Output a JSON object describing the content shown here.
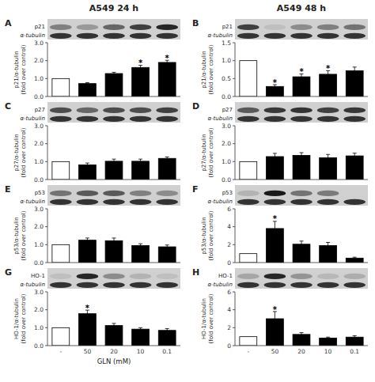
{
  "chart_data": [
    {
      "type": "bar",
      "title": "A549 24 h",
      "annotations": [
        "A"
      ],
      "blot": {
        "labels": [
          "p21",
          "α-tubulin"
        ],
        "intensities": [
          [
            0.5,
            0.4,
            0.6,
            0.75,
            0.85
          ],
          [
            0.8,
            0.8,
            0.8,
            0.8,
            0.8
          ]
        ]
      },
      "categories": [
        "-",
        "50",
        "20",
        "10",
        "0.1"
      ],
      "tick_labels": "y",
      "ylabel": "p21/α-tubulin\n(fold over control)",
      "ylim": [
        0,
        3.0
      ],
      "yticks": [
        {
          "value": 0,
          "label": "0.0"
        },
        {
          "value": 1.0,
          "label": "1.0"
        },
        {
          "value": 2.0,
          "label": "2.0"
        },
        {
          "value": 3.0,
          "label": "3.0"
        }
      ],
      "values": [
        1.0,
        0.72,
        1.28,
        1.62,
        1.9
      ],
      "errors": [
        0.0,
        0.05,
        0.07,
        0.12,
        0.12
      ],
      "significance": [
        null,
        null,
        null,
        "*",
        "*"
      ],
      "colors": [
        "white",
        "black",
        "black",
        "black",
        "black"
      ]
    },
    {
      "type": "bar",
      "annotations": [
        "C"
      ],
      "blot": {
        "labels": [
          "p27",
          "α-tubulin"
        ],
        "intensities": [
          [
            0.7,
            0.6,
            0.7,
            0.7,
            0.75
          ],
          [
            0.8,
            0.8,
            0.8,
            0.8,
            0.8
          ]
        ]
      },
      "categories": [
        "-",
        "50",
        "20",
        "10",
        "0.1"
      ],
      "tick_labels": "y",
      "ylabel": "p27/α-tubulin\n(fold over control)",
      "ylim": [
        0,
        3.0
      ],
      "yticks": [
        {
          "value": 0,
          "label": "0.0"
        },
        {
          "value": 1.0,
          "label": "1.0"
        },
        {
          "value": 2.0,
          "label": "2.0"
        },
        {
          "value": 3.0,
          "label": "3.0"
        }
      ],
      "values": [
        1.0,
        0.82,
        1.02,
        1.02,
        1.18
      ],
      "errors": [
        0.0,
        0.1,
        0.12,
        0.12,
        0.08
      ],
      "significance": [
        null,
        null,
        null,
        null,
        null
      ],
      "colors": [
        "white",
        "black",
        "black",
        "black",
        "black"
      ]
    },
    {
      "type": "bar",
      "annotations": [
        "E"
      ],
      "blot": {
        "labels": [
          "p53",
          "α-tubulin"
        ],
        "intensities": [
          [
            0.55,
            0.65,
            0.65,
            0.5,
            0.45
          ],
          [
            0.8,
            0.8,
            0.8,
            0.8,
            0.8
          ]
        ]
      },
      "categories": [
        "-",
        "50",
        "20",
        "10",
        "0.1"
      ],
      "tick_labels": "y",
      "ylabel": "p53/α-tubulin\n(fold over control)",
      "ylim": [
        0,
        3.0
      ],
      "yticks": [
        {
          "value": 0,
          "label": "0.0"
        },
        {
          "value": 1.0,
          "label": "1.0"
        },
        {
          "value": 2.0,
          "label": "2.0"
        },
        {
          "value": 3.0,
          "label": "3.0"
        }
      ],
      "values": [
        1.0,
        1.25,
        1.22,
        0.95,
        0.88
      ],
      "errors": [
        0.0,
        0.12,
        0.15,
        0.1,
        0.1
      ],
      "significance": [
        null,
        null,
        null,
        null,
        null
      ],
      "colors": [
        "white",
        "black",
        "black",
        "black",
        "black"
      ]
    },
    {
      "type": "bar",
      "annotations": [
        "G"
      ],
      "blot": {
        "labels": [
          "HO-1",
          "α-tubulin"
        ],
        "intensities": [
          [
            0.25,
            0.85,
            0.45,
            0.3,
            0.25
          ],
          [
            0.8,
            0.8,
            0.8,
            0.8,
            0.8
          ]
        ]
      },
      "categories": [
        "-",
        "50",
        "20",
        "10",
        "0.1"
      ],
      "xlabel": "GLN (mM)",
      "ylabel": "HO-1/α-tubulin\n(fold over control)",
      "ylim": [
        0,
        3.0
      ],
      "yticks": [
        {
          "value": 0,
          "label": "0.0"
        },
        {
          "value": 1.0,
          "label": "1.0"
        },
        {
          "value": 2.0,
          "label": "2.0"
        },
        {
          "value": 3.0,
          "label": "3.0"
        }
      ],
      "values": [
        1.0,
        1.78,
        1.12,
        0.92,
        0.85
      ],
      "errors": [
        0.0,
        0.2,
        0.12,
        0.08,
        0.1
      ],
      "significance": [
        null,
        "*",
        null,
        null,
        null
      ],
      "colors": [
        "white",
        "black",
        "black",
        "black",
        "black"
      ]
    },
    {
      "type": "bar",
      "title": "A549 48 h",
      "annotations": [
        "B"
      ],
      "blot": {
        "labels": [
          "p21",
          "α-tubulin"
        ],
        "intensities": [
          [
            0.75,
            0.25,
            0.45,
            0.5,
            0.55
          ],
          [
            0.8,
            0.8,
            0.8,
            0.8,
            0.8
          ]
        ]
      },
      "categories": [
        "-",
        "50",
        "20",
        "10",
        "0.1"
      ],
      "tick_labels": "y",
      "ylabel": "p21/α-tubulin\n(fold over control)",
      "ylim": [
        0,
        1.5
      ],
      "yticks": [
        {
          "value": 0,
          "label": "0.0"
        },
        0.5,
        {
          "value": 1.0,
          "label": "1.0"
        },
        1.5
      ],
      "values": [
        1.0,
        0.28,
        0.55,
        0.62,
        0.72
      ],
      "errors": [
        0.0,
        0.05,
        0.08,
        0.1,
        0.1
      ],
      "significance": [
        null,
        "*",
        "*",
        "*",
        null
      ],
      "colors": [
        "white",
        "black",
        "black",
        "black",
        "black"
      ]
    },
    {
      "type": "bar",
      "annotations": [
        "D"
      ],
      "blot": {
        "labels": [
          "p27",
          "α-tubulin"
        ],
        "intensities": [
          [
            0.65,
            0.78,
            0.8,
            0.75,
            0.78
          ],
          [
            0.8,
            0.8,
            0.8,
            0.8,
            0.8
          ]
        ]
      },
      "categories": [
        "-",
        "50",
        "20",
        "10",
        "0.1"
      ],
      "tick_labels": "y",
      "ylabel": "p27/α-tubulin\n(fold over control)",
      "ylim": [
        0,
        3.0
      ],
      "yticks": [
        {
          "value": 0,
          "label": "0.0"
        },
        {
          "value": 1.0,
          "label": "1.0"
        },
        {
          "value": 2.0,
          "label": "2.0"
        },
        {
          "value": 3.0,
          "label": "3.0"
        }
      ],
      "values": [
        1.0,
        1.28,
        1.35,
        1.22,
        1.32
      ],
      "errors": [
        0.0,
        0.18,
        0.15,
        0.18,
        0.15
      ],
      "significance": [
        null,
        null,
        null,
        null,
        null
      ],
      "colors": [
        "white",
        "black",
        "black",
        "black",
        "black"
      ]
    },
    {
      "type": "bar",
      "annotations": [
        "F"
      ],
      "blot": {
        "labels": [
          "p53",
          "α-tubulin"
        ],
        "intensities": [
          [
            0.3,
            0.9,
            0.55,
            0.52,
            0.18
          ],
          [
            0.8,
            0.8,
            0.8,
            0.8,
            0.8
          ]
        ]
      },
      "categories": [
        "-",
        "50",
        "20",
        "10",
        "0.1"
      ],
      "tick_labels": "y",
      "ylabel": "p53/α-tubulin\n(fold over control)",
      "ylim": [
        0,
        6.0
      ],
      "yticks": [
        0,
        2,
        4,
        6
      ],
      "values": [
        1.0,
        3.8,
        2.05,
        1.9,
        0.5
      ],
      "errors": [
        0.0,
        0.8,
        0.35,
        0.35,
        0.1
      ],
      "significance": [
        null,
        "*",
        null,
        null,
        null
      ],
      "colors": [
        "white",
        "black",
        "black",
        "black",
        "black"
      ]
    },
    {
      "type": "bar",
      "annotations": [
        "H"
      ],
      "blot": {
        "labels": [
          "HO-1",
          "α-tubulin"
        ],
        "intensities": [
          [
            0.35,
            0.85,
            0.42,
            0.28,
            0.32
          ],
          [
            0.8,
            0.8,
            0.8,
            0.8,
            0.8
          ]
        ]
      },
      "categories": [
        "-",
        "50",
        "20",
        "10",
        "0.1"
      ],
      "ylabel": "HO-1/α-tubulin\n(fold over control)",
      "ylim": [
        0,
        6.0
      ],
      "yticks": [
        0,
        2,
        4,
        6
      ],
      "values": [
        1.0,
        3.0,
        1.25,
        0.85,
        0.95
      ],
      "errors": [
        0.0,
        0.8,
        0.2,
        0.1,
        0.15
      ],
      "significance": [
        null,
        "*",
        null,
        null,
        null
      ],
      "colors": [
        "white",
        "black",
        "black",
        "black",
        "black"
      ]
    }
  ]
}
